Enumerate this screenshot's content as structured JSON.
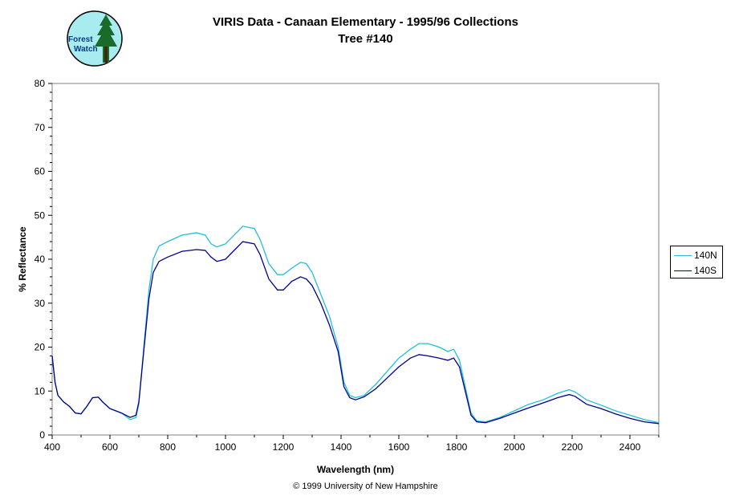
{
  "chart_data": {
    "type": "line",
    "title": "VIRIS Data - Canaan Elementary - 1995/96 Collections",
    "subtitle": "Tree #140",
    "xlabel": "Wavelength (nm)",
    "ylabel": "% Reflectance",
    "xlim": [
      400,
      2500
    ],
    "ylim": [
      0,
      80
    ],
    "xticks": [
      400,
      600,
      800,
      1000,
      1200,
      1400,
      1600,
      1800,
      2000,
      2200,
      2400
    ],
    "yticks": [
      0,
      10,
      20,
      30,
      40,
      50,
      60,
      70,
      80
    ],
    "grid": false,
    "legend_position": "right",
    "series": [
      {
        "name": "140N",
        "color": "#20c0d8",
        "points": [
          [
            400,
            18
          ],
          [
            410,
            12
          ],
          [
            420,
            9
          ],
          [
            440,
            7.5
          ],
          [
            460,
            6.5
          ],
          [
            480,
            5
          ],
          [
            500,
            4.8
          ],
          [
            520,
            6.5
          ],
          [
            540,
            8.5
          ],
          [
            560,
            8.6
          ],
          [
            575,
            7.5
          ],
          [
            600,
            6
          ],
          [
            640,
            5
          ],
          [
            670,
            3.5
          ],
          [
            690,
            4
          ],
          [
            700,
            7
          ],
          [
            720,
            22
          ],
          [
            735,
            33
          ],
          [
            750,
            40
          ],
          [
            770,
            43
          ],
          [
            800,
            44
          ],
          [
            850,
            45.5
          ],
          [
            900,
            46
          ],
          [
            930,
            45.5
          ],
          [
            950,
            43.5
          ],
          [
            970,
            42.8
          ],
          [
            1000,
            43.5
          ],
          [
            1030,
            45.5
          ],
          [
            1060,
            47.5
          ],
          [
            1100,
            47
          ],
          [
            1120,
            44.5
          ],
          [
            1150,
            39
          ],
          [
            1180,
            36.5
          ],
          [
            1200,
            36.5
          ],
          [
            1230,
            38
          ],
          [
            1260,
            39.3
          ],
          [
            1280,
            39
          ],
          [
            1300,
            37
          ],
          [
            1330,
            32
          ],
          [
            1360,
            27
          ],
          [
            1390,
            20
          ],
          [
            1410,
            12
          ],
          [
            1430,
            9
          ],
          [
            1450,
            8.5
          ],
          [
            1480,
            9
          ],
          [
            1520,
            11.5
          ],
          [
            1560,
            14.5
          ],
          [
            1600,
            17.5
          ],
          [
            1640,
            19.5
          ],
          [
            1670,
            20.8
          ],
          [
            1700,
            20.8
          ],
          [
            1740,
            20
          ],
          [
            1770,
            19
          ],
          [
            1790,
            19.5
          ],
          [
            1810,
            17
          ],
          [
            1830,
            11
          ],
          [
            1850,
            5
          ],
          [
            1870,
            3.2
          ],
          [
            1900,
            3
          ],
          [
            1950,
            4
          ],
          [
            2000,
            5.5
          ],
          [
            2050,
            7
          ],
          [
            2100,
            8
          ],
          [
            2150,
            9.5
          ],
          [
            2190,
            10.3
          ],
          [
            2210,
            9.8
          ],
          [
            2250,
            8
          ],
          [
            2300,
            6.8
          ],
          [
            2350,
            5.5
          ],
          [
            2400,
            4.5
          ],
          [
            2450,
            3.5
          ],
          [
            2500,
            2.8
          ]
        ]
      },
      {
        "name": "140S",
        "color": "#000090",
        "points": [
          [
            400,
            18
          ],
          [
            410,
            12
          ],
          [
            420,
            9
          ],
          [
            440,
            7.5
          ],
          [
            460,
            6.5
          ],
          [
            480,
            5
          ],
          [
            500,
            4.8
          ],
          [
            520,
            6.5
          ],
          [
            540,
            8.5
          ],
          [
            560,
            8.6
          ],
          [
            575,
            7.5
          ],
          [
            600,
            6
          ],
          [
            640,
            5
          ],
          [
            670,
            4
          ],
          [
            690,
            4.5
          ],
          [
            700,
            7.5
          ],
          [
            720,
            21
          ],
          [
            735,
            31
          ],
          [
            750,
            37
          ],
          [
            770,
            39.5
          ],
          [
            800,
            40.5
          ],
          [
            850,
            41.8
          ],
          [
            900,
            42.2
          ],
          [
            930,
            42
          ],
          [
            950,
            40.5
          ],
          [
            970,
            39.5
          ],
          [
            1000,
            40
          ],
          [
            1030,
            42
          ],
          [
            1060,
            44
          ],
          [
            1100,
            43.5
          ],
          [
            1120,
            41
          ],
          [
            1150,
            35.5
          ],
          [
            1180,
            33
          ],
          [
            1200,
            33
          ],
          [
            1230,
            35
          ],
          [
            1260,
            36
          ],
          [
            1280,
            35.5
          ],
          [
            1300,
            34
          ],
          [
            1330,
            30
          ],
          [
            1360,
            25
          ],
          [
            1390,
            19
          ],
          [
            1410,
            11
          ],
          [
            1430,
            8.5
          ],
          [
            1450,
            8
          ],
          [
            1480,
            8.7
          ],
          [
            1520,
            10.5
          ],
          [
            1560,
            13
          ],
          [
            1600,
            15.5
          ],
          [
            1640,
            17.5
          ],
          [
            1670,
            18.3
          ],
          [
            1700,
            18
          ],
          [
            1740,
            17.5
          ],
          [
            1770,
            17
          ],
          [
            1790,
            17.5
          ],
          [
            1810,
            15.5
          ],
          [
            1830,
            10
          ],
          [
            1850,
            4.5
          ],
          [
            1870,
            3
          ],
          [
            1900,
            2.8
          ],
          [
            1950,
            3.8
          ],
          [
            2000,
            5
          ],
          [
            2050,
            6.2
          ],
          [
            2100,
            7.3
          ],
          [
            2150,
            8.5
          ],
          [
            2190,
            9.2
          ],
          [
            2210,
            8.8
          ],
          [
            2250,
            7
          ],
          [
            2300,
            6
          ],
          [
            2350,
            4.8
          ],
          [
            2400,
            3.8
          ],
          [
            2450,
            3
          ],
          [
            2500,
            2.6
          ]
        ]
      }
    ]
  },
  "logo": {
    "text_line1": "Forest",
    "text_line2": "Watch",
    "colors": {
      "circle": "#a8ecf0",
      "tree": "#1a6a2a",
      "text": "#0a3a8a"
    }
  },
  "footer": {
    "copyright": "© 1999 University of New Hampshire"
  }
}
